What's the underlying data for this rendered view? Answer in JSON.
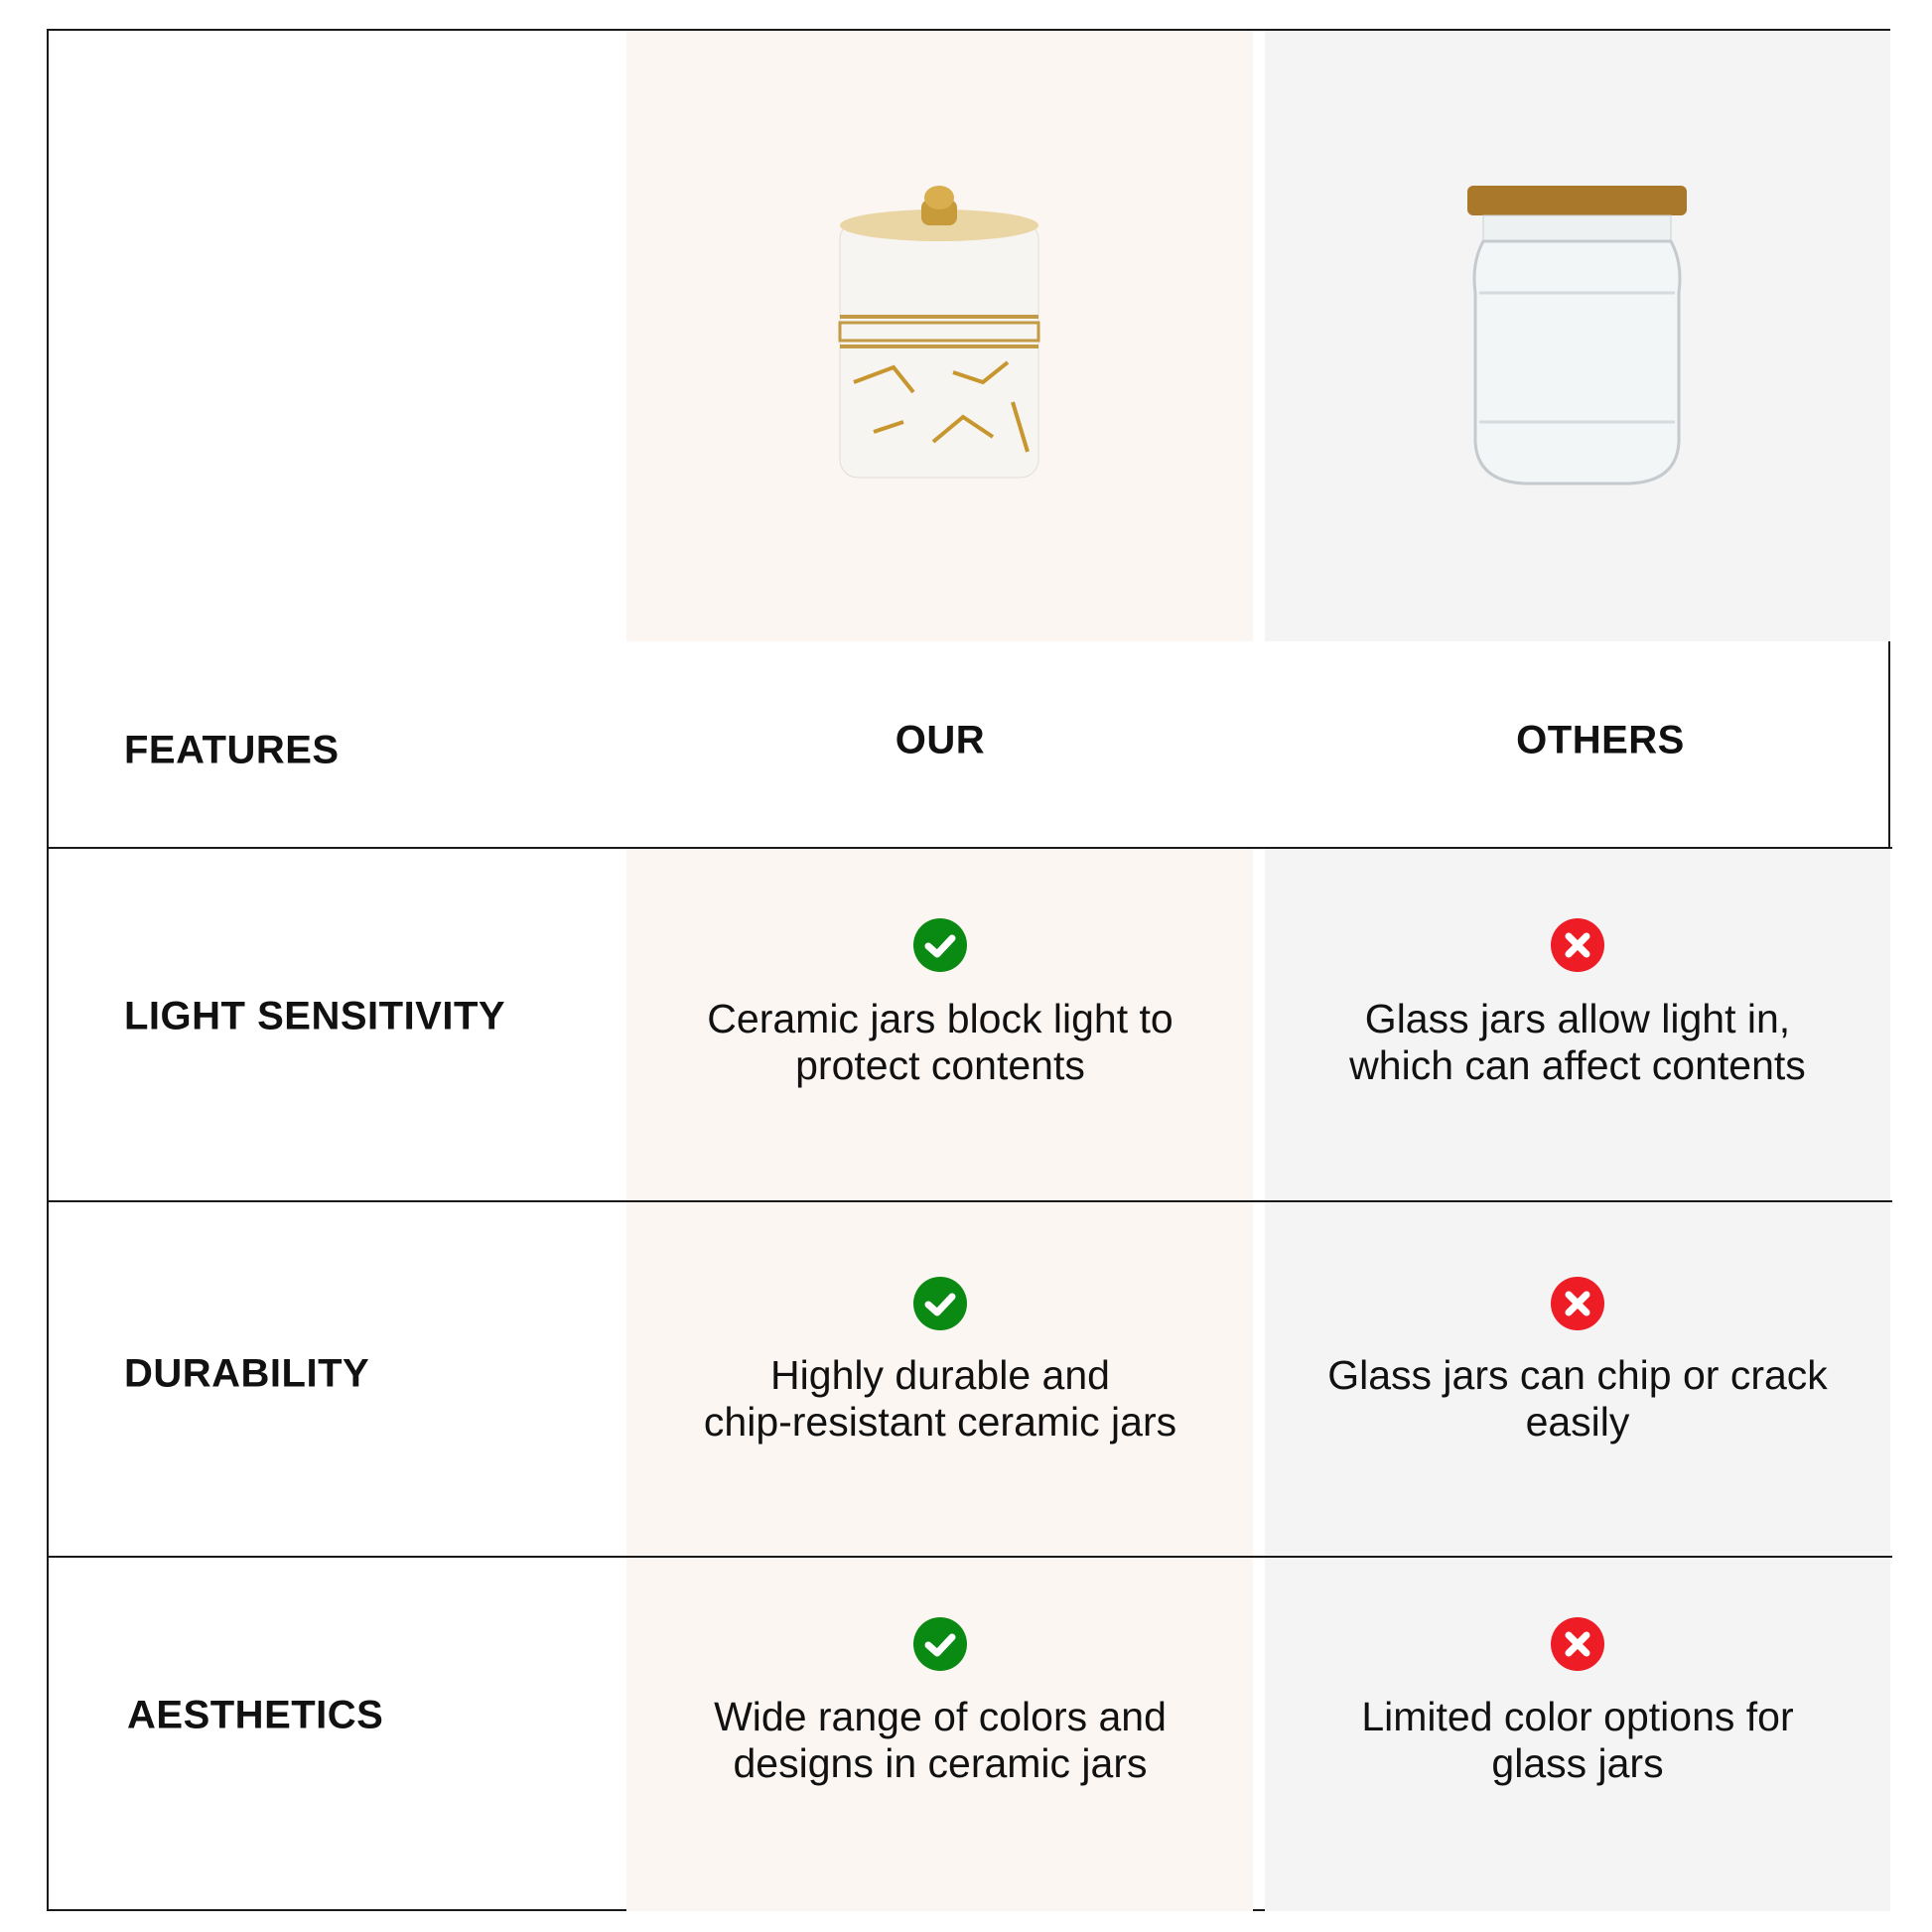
{
  "header": {
    "features_label": "FEATURES",
    "our_label": "OUR",
    "others_label": "OTHERS",
    "our_image": "white-gold-ceramic-jar",
    "others_image": "clear-glass-jar-gold-lid"
  },
  "rows": [
    {
      "feature": "LIGHT SENSITIVITY",
      "our": {
        "icon": "check-icon",
        "line1": "Ceramic jars block light to",
        "line2": "protect contents"
      },
      "others": {
        "icon": "x-icon",
        "line1": "Glass jars allow light in,",
        "line2": "which can affect contents"
      }
    },
    {
      "feature": "DURABILITY",
      "our": {
        "icon": "check-icon",
        "line1": "Highly durable and",
        "line2": "chip-resistant ceramic jars"
      },
      "others": {
        "icon": "x-icon",
        "line1": "Glass jars can chip or crack",
        "line2": "easily"
      }
    },
    {
      "feature": "AESTHETICS",
      "our": {
        "icon": "check-icon",
        "line1": "Wide range of colors and",
        "line2": "designs in ceramic jars"
      },
      "others": {
        "icon": "x-icon",
        "line1": "Limited color options for",
        "line2": "glass jars"
      }
    }
  ],
  "colors": {
    "check": "#0a8a13",
    "cross": "#ee1c25",
    "our_bg": "#fcf6f3",
    "others_bg": "#f4f4f4"
  }
}
